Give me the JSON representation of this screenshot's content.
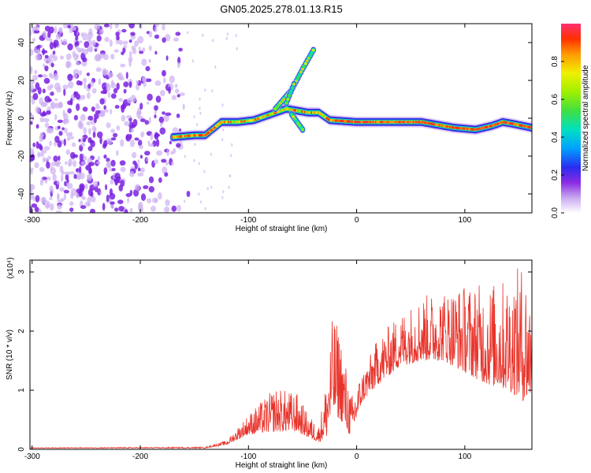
{
  "title": "GN05.2025.278.01.13.R15",
  "chart_data": [
    {
      "type": "heatmap",
      "xlabel": "Height of straight line (km)",
      "ylabel": "Frequency (Hz)",
      "xlim": [
        -302,
        162
      ],
      "ylim": [
        -50,
        50
      ],
      "x_ticks": [
        -300,
        -200,
        -100,
        0,
        100
      ],
      "y_ticks": [
        -40,
        -20,
        0,
        20,
        40
      ],
      "colorbar": {
        "label": "Normalized spectral amplitude",
        "range": [
          0,
          1
        ],
        "ticks": [
          0.0,
          0.2,
          0.4,
          0.6,
          0.8
        ],
        "tick_labels": [
          "0.0",
          "0.2",
          "0.4",
          "0.6",
          "0.8"
        ]
      },
      "noise_region": {
        "x_range": [
          -302,
          -155
        ],
        "y_range": [
          -50,
          50
        ],
        "amplitude": 0.15
      },
      "ridge": [
        {
          "x": -170,
          "y": -10
        },
        {
          "x": -150,
          "y": -9
        },
        {
          "x": -140,
          "y": -9
        },
        {
          "x": -125,
          "y": -2
        },
        {
          "x": -110,
          "y": -2
        },
        {
          "x": -95,
          "y": -1
        },
        {
          "x": -80,
          "y": 2
        },
        {
          "x": -65,
          "y": 5
        },
        {
          "x": -55,
          "y": 4
        },
        {
          "x": -45,
          "y": 3
        },
        {
          "x": -35,
          "y": 3
        },
        {
          "x": -25,
          "y": -1
        },
        {
          "x": 0,
          "y": -2
        },
        {
          "x": 30,
          "y": -2
        },
        {
          "x": 60,
          "y": -2
        },
        {
          "x": 90,
          "y": -5
        },
        {
          "x": 110,
          "y": -6
        },
        {
          "x": 125,
          "y": -4
        },
        {
          "x": 135,
          "y": -2
        },
        {
          "x": 145,
          "y": -3
        },
        {
          "x": 162,
          "y": -5
        }
      ],
      "branches": [
        [
          {
            "x": -75,
            "y": 5
          },
          {
            "x": -60,
            "y": 15
          },
          {
            "x": -50,
            "y": 26
          },
          {
            "x": -40,
            "y": 36
          }
        ],
        [
          {
            "x": -65,
            "y": 8
          },
          {
            "x": -58,
            "y": 18
          }
        ],
        [
          {
            "x": -60,
            "y": 2
          },
          {
            "x": -50,
            "y": -6
          }
        ]
      ]
    },
    {
      "type": "line",
      "xlabel": "Height of straight line (km)",
      "ylabel": "SNR (10 * v/v)",
      "y_multiplier": "(x10⁴)",
      "xlim": [
        -302,
        162
      ],
      "ylim": [
        0,
        3.2
      ],
      "x_ticks": [
        -300,
        -200,
        -100,
        0,
        100
      ],
      "y_ticks": [
        0,
        1,
        2,
        3
      ],
      "series": [
        {
          "color": "#e8332a",
          "envelope": [
            {
              "x": -302,
              "base": 0.02,
              "peak": 0.03
            },
            {
              "x": -140,
              "base": 0.02,
              "peak": 0.04
            },
            {
              "x": -120,
              "base": 0.08,
              "peak": 0.15
            },
            {
              "x": -100,
              "base": 0.25,
              "peak": 0.6
            },
            {
              "x": -75,
              "base": 0.3,
              "peak": 1.05
            },
            {
              "x": -55,
              "base": 0.3,
              "peak": 0.95
            },
            {
              "x": -45,
              "base": 0.2,
              "peak": 0.6
            },
            {
              "x": -35,
              "base": 0.12,
              "peak": 0.4
            },
            {
              "x": -28,
              "base": 0.2,
              "peak": 1.2
            },
            {
              "x": -22,
              "base": 0.6,
              "peak": 2.3
            },
            {
              "x": -15,
              "base": 0.5,
              "peak": 2.0
            },
            {
              "x": -5,
              "base": 0.2,
              "peak": 0.9
            },
            {
              "x": 5,
              "base": 0.8,
              "peak": 1.3
            },
            {
              "x": 20,
              "base": 1.1,
              "peak": 1.9
            },
            {
              "x": 40,
              "base": 1.4,
              "peak": 2.3
            },
            {
              "x": 60,
              "base": 1.5,
              "peak": 2.6
            },
            {
              "x": 80,
              "base": 1.5,
              "peak": 2.7
            },
            {
              "x": 100,
              "base": 1.3,
              "peak": 2.8
            },
            {
              "x": 120,
              "base": 1.1,
              "peak": 2.8
            },
            {
              "x": 140,
              "base": 1.0,
              "peak": 2.9
            },
            {
              "x": 155,
              "base": 0.8,
              "peak": 3.2
            },
            {
              "x": 162,
              "base": 0.9,
              "peak": 2.5
            }
          ]
        }
      ]
    }
  ]
}
